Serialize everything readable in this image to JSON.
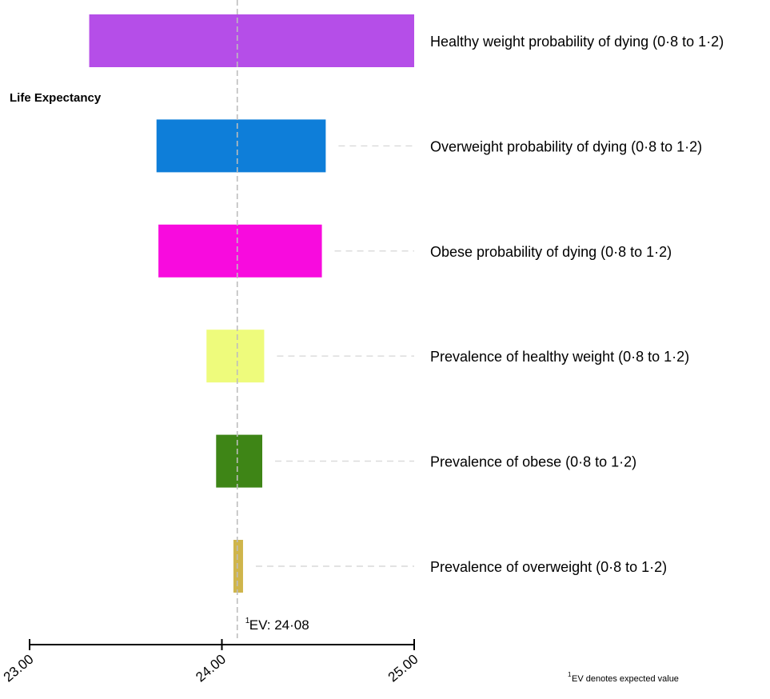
{
  "chart_data": {
    "type": "bar",
    "subtype": "tornado",
    "panel_label": "Life Expectancy",
    "ev_label": "EV: 24·08",
    "ev_superscript": "1",
    "footnote": "EV denotes expected value",
    "footnote_superscript": "1",
    "expected_value": 24.08,
    "xlim": [
      23.0,
      25.0
    ],
    "x_ticks": [
      23.0,
      24.0,
      25.0
    ],
    "x_tick_labels": [
      "23.00",
      "24.00",
      "25.00"
    ],
    "grid": false,
    "bars": [
      {
        "label": "Healthy weight  probability of dying (0·8 to 1·2)",
        "low": 23.31,
        "high": 25.0,
        "color": "#b54ee8"
      },
      {
        "label": "Overweight  probability of dying (0·8 to 1·2)",
        "low": 23.66,
        "high": 24.54,
        "color": "#0e7ed9"
      },
      {
        "label": "Obese probability of dying (0·8 to 1·2)",
        "low": 23.67,
        "high": 24.52,
        "color": "#f80bde"
      },
      {
        "label": "Prevalence of healthy weight (0·8 to 1·2)",
        "low": 23.92,
        "high": 24.22,
        "color": "#eefb7c"
      },
      {
        "label": "Prevalence of obese (0·8 to 1·2)",
        "low": 23.97,
        "high": 24.21,
        "color": "#3e8516"
      },
      {
        "label": "Prevalence of overweight (0·8 to 1·2)",
        "low": 24.06,
        "high": 24.11,
        "color": "#cfb54b"
      }
    ]
  }
}
